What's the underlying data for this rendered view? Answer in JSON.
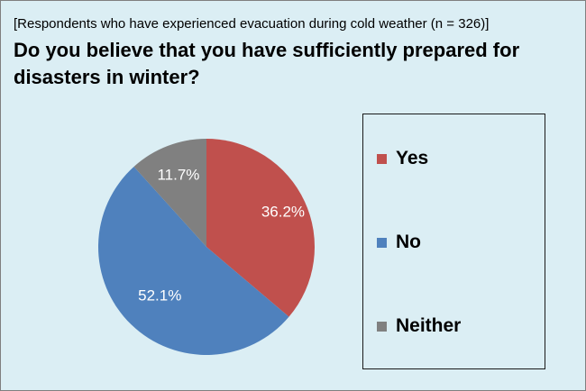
{
  "header": {
    "subtitle": "[Respondents who have experienced evacuation during cold weather (n = 326)]",
    "title": "Do you believe that you have sufficiently prepared for disasters in winter?"
  },
  "chart_data": {
    "type": "pie",
    "title": "Do you believe that you have sufficiently prepared for disasters in winter?",
    "subtitle": "[Respondents who have experienced evacuation during cold weather (n = 326)]",
    "categories": [
      "Yes",
      "No",
      "Neither"
    ],
    "values": [
      36.2,
      52.1,
      11.7
    ],
    "value_labels": [
      "36.2%",
      "52.1%",
      "11.7%"
    ],
    "colors": [
      "#c0504d",
      "#4f81bd",
      "#808080"
    ],
    "start_angle": "12 o'clock",
    "direction": "clockwise",
    "legend_position": "right"
  },
  "legend": {
    "items": [
      {
        "label": "Yes",
        "color": "#c0504d"
      },
      {
        "label": "No",
        "color": "#4f81bd"
      },
      {
        "label": "Neither",
        "color": "#808080"
      }
    ]
  }
}
